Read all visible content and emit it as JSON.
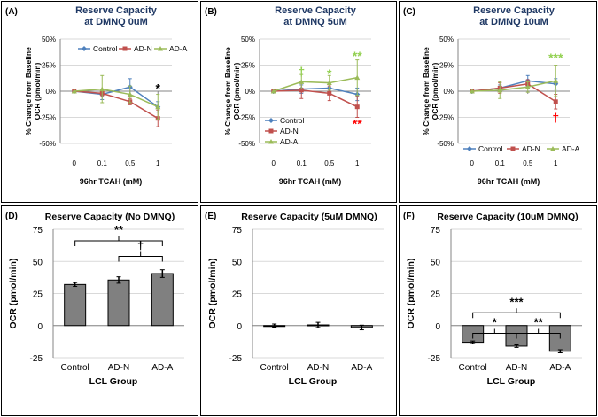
{
  "colors": {
    "control": "#4f81bd",
    "ad_n": "#c0504d",
    "ad_a": "#9bbb59",
    "bar": "#808080",
    "grid": "#d9d9d9",
    "sig_red": "#ff0000",
    "sig_green": "#92d050"
  },
  "chart_data": [
    {
      "type": "line",
      "panel_label": "(A)",
      "title": [
        "Reserve Capacity",
        "at DMNQ 0uM"
      ],
      "xlabel": "96hr TCAH (mM)",
      "ylabel": [
        "% Change from Baseline",
        "OCR (pmol/min)"
      ],
      "categories": [
        "0",
        "0.1",
        "0.5",
        "1"
      ],
      "y_ticks": [
        50,
        25,
        0,
        -25,
        -50
      ],
      "y_tick_labels": [
        "50%",
        "25%",
        "0%",
        "-25%",
        "-50%"
      ],
      "ylim": [
        -50,
        50
      ],
      "legend_position": "top-right",
      "series": [
        {
          "name": "Control",
          "values": [
            0,
            -3,
            4,
            -15
          ],
          "errors": [
            0,
            5,
            8,
            5
          ]
        },
        {
          "name": "AD-N",
          "values": [
            0,
            -2,
            -10,
            -26
          ],
          "errors": [
            0,
            3,
            3,
            8
          ]
        },
        {
          "name": "AD-A",
          "values": [
            0,
            2,
            -3,
            -15
          ],
          "errors": [
            0,
            13,
            8,
            12
          ]
        }
      ],
      "annotations": [
        {
          "text": "*",
          "category": "1",
          "y": 3,
          "color": "#000000"
        }
      ]
    },
    {
      "type": "line",
      "panel_label": "(B)",
      "title": [
        "Reserve Capacity",
        "at DMNQ 5uM"
      ],
      "xlabel": "96hr TCAH (mM)",
      "ylabel": [
        "% Change from Baseline",
        "OCR (pmol/min)"
      ],
      "categories": [
        "0",
        "0.1",
        "0.5",
        "1"
      ],
      "y_ticks": [
        50,
        25,
        0,
        -25,
        -50
      ],
      "y_tick_labels": [
        "50%",
        "25%",
        "0%",
        "-25%",
        "-50%"
      ],
      "ylim": [
        -50,
        50
      ],
      "legend_position": "bottom-left",
      "series": [
        {
          "name": "Control",
          "values": [
            0,
            2,
            3,
            -3
          ],
          "errors": [
            0,
            4,
            5,
            6
          ]
        },
        {
          "name": "AD-N",
          "values": [
            0,
            1,
            -2,
            -15
          ],
          "errors": [
            0,
            8,
            7,
            10
          ]
        },
        {
          "name": "AD-A",
          "values": [
            0,
            9,
            8,
            13
          ],
          "errors": [
            0,
            7,
            7,
            17
          ]
        }
      ],
      "annotations": [
        {
          "text": "†",
          "category": "0.1",
          "y": 19,
          "color": "#92d050"
        },
        {
          "text": "*",
          "category": "0.5",
          "y": 17,
          "color": "#92d050"
        },
        {
          "text": "**",
          "category": "1",
          "y": 34,
          "color": "#92d050"
        },
        {
          "text": "**",
          "category": "1",
          "y": -31,
          "color": "#ff0000"
        }
      ]
    },
    {
      "type": "line",
      "panel_label": "(C)",
      "title": [
        "Reserve Capacity",
        "at DMNQ 10uM"
      ],
      "xlabel": "96hr TCAH (mM)",
      "ylabel": [
        "% Change from Baseline",
        "OCR (pmol/min)"
      ],
      "categories": [
        "0",
        "0.1",
        "0.5",
        "1"
      ],
      "y_ticks": [
        50,
        25,
        0,
        -25,
        -50
      ],
      "y_tick_labels": [
        "50%",
        "25%",
        "0%",
        "-25%",
        "-50%"
      ],
      "ylim": [
        -50,
        50
      ],
      "legend_position": "bottom",
      "series": [
        {
          "name": "Control",
          "values": [
            0,
            3,
            10,
            7
          ],
          "errors": [
            0,
            3,
            5,
            5
          ]
        },
        {
          "name": "AD-N",
          "values": [
            0,
            3,
            7,
            -10
          ],
          "errors": [
            0,
            5,
            4,
            7
          ]
        },
        {
          "name": "AD-A",
          "values": [
            0,
            1,
            4,
            10
          ],
          "errors": [
            0,
            8,
            5,
            15
          ]
        }
      ],
      "annotations": [
        {
          "text": "***",
          "category": "1",
          "y": 32,
          "color": "#92d050"
        },
        {
          "text": "†",
          "category": "1",
          "y": -25,
          "color": "#ff0000"
        }
      ]
    },
    {
      "type": "bar",
      "panel_label": "(D)",
      "title": [
        "Reserve Capacity (No DMNQ)"
      ],
      "xlabel": "LCL Group",
      "ylabel": [
        "OCR (pmol/min)"
      ],
      "categories": [
        "Control",
        "AD-N",
        "AD-A"
      ],
      "values": [
        32,
        35.5,
        40.5
      ],
      "errors": [
        1.5,
        2.5,
        3
      ],
      "y_ticks": [
        75,
        50,
        25,
        0,
        -25
      ],
      "y_tick_labels": [
        "75",
        "50",
        "25",
        "0",
        "-25"
      ],
      "ylim": [
        -25,
        75
      ],
      "brackets": [
        {
          "from": 0,
          "to": 2,
          "y": 66,
          "text": "**"
        },
        {
          "from": 1,
          "to": 2,
          "y": 54,
          "text": "†"
        }
      ]
    },
    {
      "type": "bar",
      "panel_label": "(E)",
      "title": [
        "Reserve Capacity (5uM DMNQ)"
      ],
      "xlabel": "LCL Group",
      "ylabel": [
        "OCR (pmol/min)"
      ],
      "categories": [
        "Control",
        "AD-N",
        "AD-A"
      ],
      "values": [
        0,
        0.5,
        -1.5
      ],
      "errors": [
        1.2,
        2,
        1.8
      ],
      "y_ticks": [
        75,
        50,
        25,
        0,
        -25
      ],
      "y_tick_labels": [
        "75",
        "50",
        "25",
        "0",
        "-25"
      ],
      "ylim": [
        -25,
        75
      ],
      "brackets": []
    },
    {
      "type": "bar",
      "panel_label": "(F)",
      "title": [
        "Reserve Capacity (10uM DMNQ)"
      ],
      "xlabel": "LCL Group",
      "ylabel": [
        "OCR (pmol/min)"
      ],
      "categories": [
        "Control",
        "AD-N",
        "AD-A"
      ],
      "values": [
        -13,
        -16,
        -20
      ],
      "errors": [
        1,
        1,
        1.2
      ],
      "y_ticks": [
        75,
        50,
        25,
        0,
        -25
      ],
      "y_tick_labels": [
        "75",
        "50",
        "25",
        "0",
        "-25"
      ],
      "ylim": [
        -25,
        75
      ],
      "brackets": [
        {
          "from": 0,
          "to": 2,
          "y": 10,
          "text": "***"
        },
        {
          "from": 0,
          "to": 1,
          "y": -6,
          "text": "*"
        },
        {
          "from": 1,
          "to": 2,
          "y": -6,
          "text": "**"
        }
      ]
    }
  ]
}
